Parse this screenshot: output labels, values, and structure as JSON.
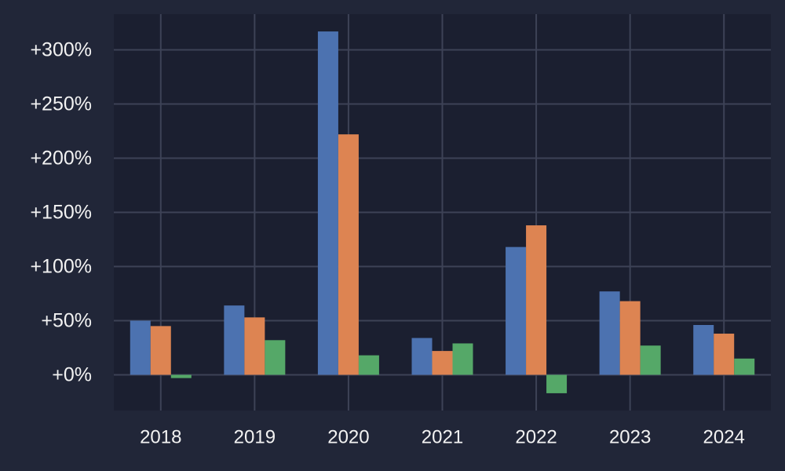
{
  "chart_data": {
    "type": "bar",
    "title": "",
    "xlabel": "",
    "ylabel": "",
    "categories": [
      "2018",
      "2019",
      "2020",
      "2021",
      "2022",
      "2023",
      "2024"
    ],
    "series": [
      {
        "color": "#4c72b0",
        "values": [
          50,
          64,
          317,
          34,
          118,
          77,
          46
        ]
      },
      {
        "color": "#dd8452",
        "values": [
          45,
          53,
          222,
          22,
          138,
          68,
          38
        ]
      },
      {
        "color": "#55a868",
        "values": [
          -3,
          32,
          18,
          29,
          -17,
          27,
          15
        ]
      }
    ],
    "ylim": [
      -33,
      333
    ],
    "yticks": [
      0,
      50,
      100,
      150,
      200,
      250,
      300
    ],
    "ytick_labels": [
      "+0%",
      "+50%",
      "+100%",
      "+150%",
      "+200%",
      "+250%",
      "+300%"
    ],
    "grid": true,
    "legend": "none",
    "colors": {
      "background": "#212638",
      "plot_background": "#1b1f30",
      "grid": "#3d4256",
      "text": "#f2f2f2"
    }
  }
}
